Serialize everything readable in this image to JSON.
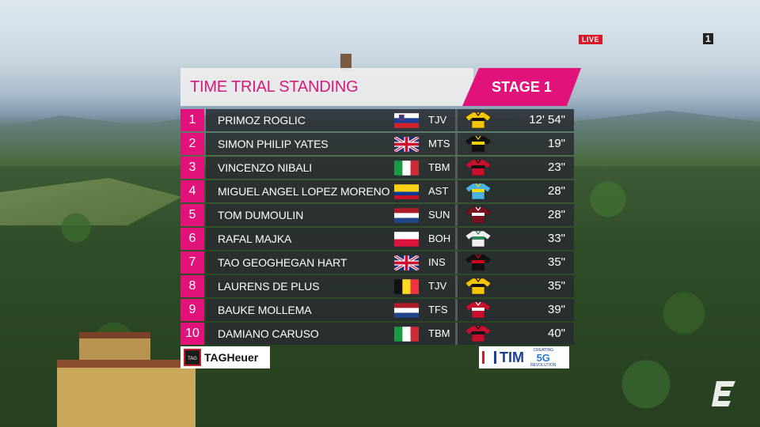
{
  "overlay": {
    "live_badge": "LIVE",
    "channel_number": "1"
  },
  "standing": {
    "title": "TIME TRIAL STANDING",
    "stage": "STAGE 1",
    "rows": [
      {
        "rank": "1",
        "name": "PRIMOZ ROGLIC",
        "flag": "slovenia",
        "team": "TJV",
        "jersey": "yellow-black",
        "gap": "12' 54\""
      },
      {
        "rank": "2",
        "name": "SIMON PHILIP YATES",
        "flag": "uk",
        "team": "MTS",
        "jersey": "black-yellow",
        "gap": "19\""
      },
      {
        "rank": "3",
        "name": "VINCENZO NIBALI",
        "flag": "italy",
        "team": "TBM",
        "jersey": "red-black",
        "gap": "23\""
      },
      {
        "rank": "4",
        "name": "MIGUEL ANGEL LOPEZ MORENO",
        "flag": "colombia",
        "team": "AST",
        "jersey": "light-blue",
        "gap": "28\""
      },
      {
        "rank": "5",
        "name": "TOM DUMOULIN",
        "flag": "netherlands",
        "team": "SUN",
        "jersey": "dark-red-white",
        "gap": "28\""
      },
      {
        "rank": "6",
        "name": "RAFAL MAJKA",
        "flag": "poland",
        "team": "BOH",
        "jersey": "white-green",
        "gap": "33\""
      },
      {
        "rank": "7",
        "name": "TAO GEOGHEGAN HART",
        "flag": "uk",
        "team": "INS",
        "jersey": "black-red",
        "gap": "35\""
      },
      {
        "rank": "8",
        "name": "LAURENS DE PLUS",
        "flag": "belgium",
        "team": "TJV",
        "jersey": "yellow-black",
        "gap": "35\""
      },
      {
        "rank": "9",
        "name": "BAUKE MOLLEMA",
        "flag": "netherlands",
        "team": "TFS",
        "jersey": "red-white-black",
        "gap": "39\""
      },
      {
        "rank": "10",
        "name": "DAMIANO CARUSO",
        "flag": "italy",
        "team": "TBM",
        "jersey": "red-black",
        "gap": "40\""
      }
    ]
  },
  "sponsors": {
    "left": "TAGHeuer",
    "left_shield": "TAG",
    "right": "TIM",
    "right_tag_top": "CREATING",
    "right_tag_main": "5G",
    "right_tag_bottom": "REVOLUTION"
  },
  "colors": {
    "accent": "#e1127a",
    "row_bg": "#282c30"
  }
}
